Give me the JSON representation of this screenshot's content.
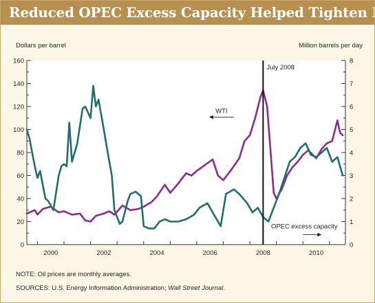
{
  "title": "Reduced OPEC Excess Capacity Helped Tighten Market",
  "note": "NOTE: Oil prices are monthly averages.",
  "sources_prefix": "SOURCES: U.S. Energy Information Administration; ",
  "sources_publication": "Wall Street Journal",
  "sources_suffix": ".",
  "colors": {
    "wti": "#8b2a8f",
    "opec": "#1f6e6b",
    "title_bar": "#b78f4e",
    "panel": "#fdf6e6"
  },
  "chart_data": {
    "type": "line",
    "left_axis_label": "Dollars per barrel",
    "right_axis_label": "Million barrels per day",
    "left_ylim": [
      0,
      160
    ],
    "right_ylim": [
      0,
      8
    ],
    "left_ticks": [
      "0",
      "20",
      "40",
      "60",
      "80",
      "100",
      "120",
      "140",
      "160"
    ],
    "right_ticks": [
      "0",
      "1",
      "2",
      "3",
      "4",
      "5",
      "6",
      "7",
      "8"
    ],
    "xlim": [
      1999.6,
      2011.6
    ],
    "x_ticks": [
      {
        "year": 2000,
        "label": "2000"
      },
      {
        "year": 2002,
        "label": "2002"
      },
      {
        "year": 2004,
        "label": "2004"
      },
      {
        "year": 2006,
        "label": "2006"
      },
      {
        "year": 2008,
        "label": "2008"
      },
      {
        "year": 2010,
        "label": "2010"
      }
    ],
    "vline": {
      "x": 2008.5,
      "label": "July 2008"
    },
    "series": [
      {
        "name": "WTI",
        "axis": "left",
        "x": [
          1999.6,
          1999.9,
          2000.0,
          2000.2,
          2000.5,
          2000.8,
          2001.0,
          2001.3,
          2001.6,
          2001.8,
          2002.0,
          2002.2,
          2002.5,
          2002.7,
          2002.9,
          2003.2,
          2003.5,
          2003.8,
          2004.0,
          2004.3,
          2004.5,
          2004.8,
          2005.0,
          2005.3,
          2005.6,
          2005.8,
          2006.0,
          2006.3,
          2006.6,
          2006.8,
          2007.0,
          2007.3,
          2007.6,
          2007.8,
          2008.0,
          2008.2,
          2008.4,
          2008.5,
          2008.65,
          2008.8,
          2008.9,
          2009.0,
          2009.2,
          2009.4,
          2009.6,
          2009.8,
          2010.0,
          2010.2,
          2010.5,
          2010.7,
          2010.9,
          2011.1,
          2011.3,
          2011.4,
          2011.5
        ],
        "values": [
          27,
          30,
          26,
          31,
          33,
          28,
          29,
          26,
          27,
          21,
          20,
          25,
          27,
          29,
          26,
          34,
          30,
          31,
          33,
          37,
          42,
          52,
          45,
          53,
          62,
          60,
          64,
          69,
          74,
          60,
          56,
          65,
          75,
          90,
          95,
          110,
          128,
          134,
          120,
          75,
          45,
          40,
          48,
          60,
          67,
          72,
          78,
          82,
          75,
          83,
          88,
          90,
          108,
          97,
          95
        ]
      },
      {
        "name": "OPEC excess capacity",
        "axis": "right",
        "x": [
          1999.6,
          1999.7,
          1999.9,
          2000.0,
          2000.1,
          2000.3,
          2000.4,
          2000.6,
          2000.8,
          2000.9,
          2001.0,
          2001.1,
          2001.2,
          2001.3,
          2001.5,
          2001.7,
          2001.8,
          2002.0,
          2002.1,
          2002.2,
          2002.3,
          2002.5,
          2002.6,
          2002.8,
          2002.9,
          2003.1,
          2003.2,
          2003.4,
          2003.5,
          2003.7,
          2003.9,
          2004.0,
          2004.2,
          2004.4,
          2004.6,
          2004.8,
          2005.0,
          2005.3,
          2005.6,
          2005.9,
          2006.1,
          2006.4,
          2006.7,
          2006.9,
          2007.1,
          2007.4,
          2007.6,
          2007.9,
          2008.1,
          2008.3,
          2008.5,
          2008.7,
          2008.9,
          2009.1,
          2009.3,
          2009.5,
          2009.7,
          2009.9,
          2010.1,
          2010.3,
          2010.5,
          2010.7,
          2010.9,
          2011.1,
          2011.3,
          2011.5
        ],
        "values": [
          5.0,
          4.6,
          3.4,
          2.9,
          3.2,
          2.0,
          1.9,
          1.5,
          3.0,
          3.4,
          3.5,
          3.4,
          5.3,
          3.6,
          4.4,
          5.9,
          6.0,
          5.5,
          6.9,
          6.0,
          6.3,
          5.0,
          4.3,
          3.0,
          1.5,
          0.9,
          1.0,
          1.9,
          2.2,
          2.3,
          2.1,
          0.8,
          0.7,
          0.7,
          1.0,
          1.1,
          1.0,
          1.0,
          1.1,
          1.3,
          1.6,
          1.8,
          1.2,
          0.8,
          2.2,
          2.4,
          2.2,
          1.8,
          1.4,
          1.6,
          1.2,
          1.0,
          1.6,
          2.2,
          2.9,
          3.6,
          3.8,
          4.2,
          4.4,
          3.9,
          3.8,
          4.0,
          4.2,
          3.6,
          3.8,
          3.0
        ]
      }
    ],
    "annotations": [
      {
        "text": "WTI",
        "series": "WTI"
      },
      {
        "text": "OPEC excess capacity",
        "series": "OPEC excess capacity"
      }
    ]
  }
}
